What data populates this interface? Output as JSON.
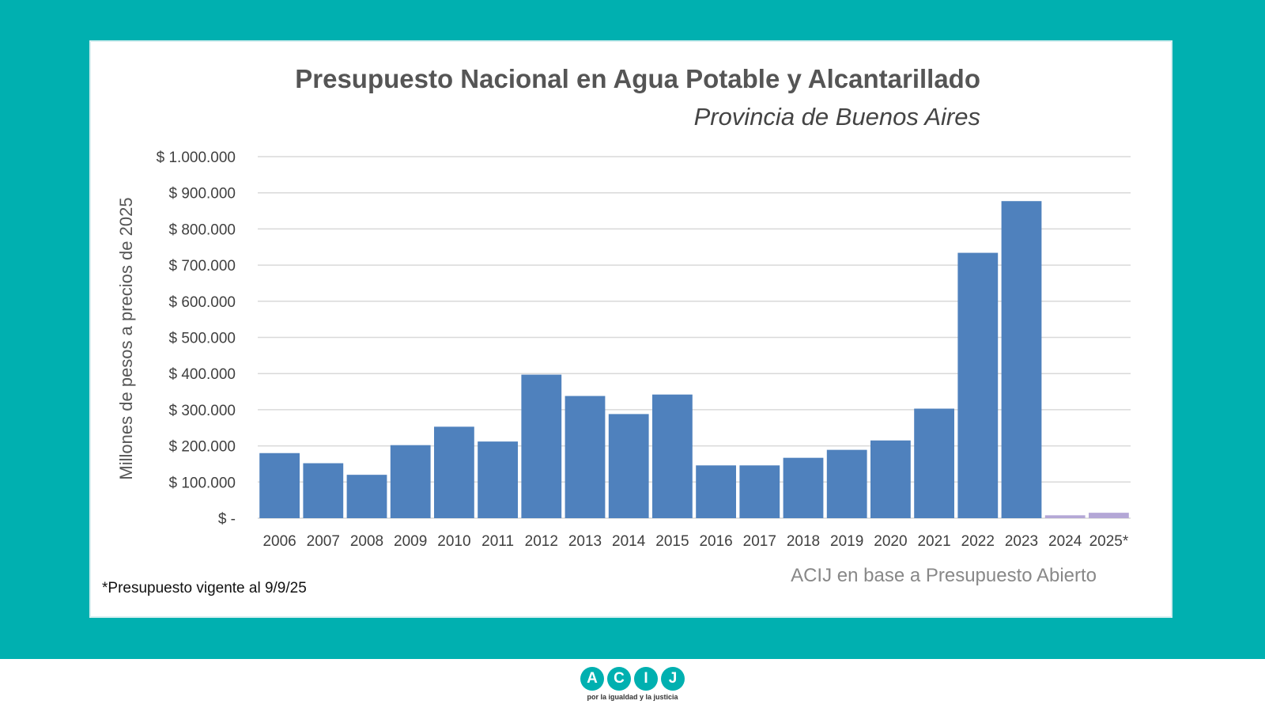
{
  "chart_data": {
    "type": "bar",
    "title": "Presupuesto Nacional en Agua Potable y Alcantarillado",
    "subtitle": "Provincia de Buenos Aires",
    "ylabel": "Millones de pesos a precios de 2025",
    "xlabel": "",
    "ylim": [
      0,
      1000000
    ],
    "y_ticks": [
      0,
      100000,
      200000,
      300000,
      400000,
      500000,
      600000,
      700000,
      800000,
      900000,
      1000000
    ],
    "y_tick_labels": [
      "$ -",
      "$ 100.000",
      "$ 200.000",
      "$ 300.000",
      "$ 400.000",
      "$ 500.000",
      "$ 600.000",
      "$ 700.000",
      "$ 800.000",
      "$ 900.000",
      "$ 1.000.000"
    ],
    "categories": [
      "2006",
      "2007",
      "2008",
      "2009",
      "2010",
      "2011",
      "2012",
      "2013",
      "2014",
      "2015",
      "2016",
      "2017",
      "2018",
      "2019",
      "2020",
      "2021",
      "2022",
      "2023",
      "2024",
      "2025*"
    ],
    "values": [
      180000,
      152000,
      120000,
      202000,
      253000,
      212000,
      397000,
      338000,
      288000,
      342000,
      146000,
      146000,
      167000,
      189000,
      215000,
      303000,
      734000,
      877000,
      8000,
      15000
    ],
    "bar_colors": [
      "#4f81bd",
      "#4f81bd",
      "#4f81bd",
      "#4f81bd",
      "#4f81bd",
      "#4f81bd",
      "#4f81bd",
      "#4f81bd",
      "#4f81bd",
      "#4f81bd",
      "#4f81bd",
      "#4f81bd",
      "#4f81bd",
      "#4f81bd",
      "#4f81bd",
      "#4f81bd",
      "#4f81bd",
      "#4f81bd",
      "#b4a7d6",
      "#b4a7d6"
    ],
    "grid": true,
    "source": "ACIJ en base a Presupuesto Abierto",
    "footnote": "*Presupuesto vigente al 9/9/25"
  },
  "logo": {
    "letters": [
      "A",
      "C",
      "I",
      "J"
    ],
    "tagline": "por la igualdad y la justicia",
    "color": "#00b0b0"
  },
  "colors": {
    "background": "#00b0b0",
    "bar": "#4f81bd",
    "bar_partial": "#b4a7d6"
  }
}
